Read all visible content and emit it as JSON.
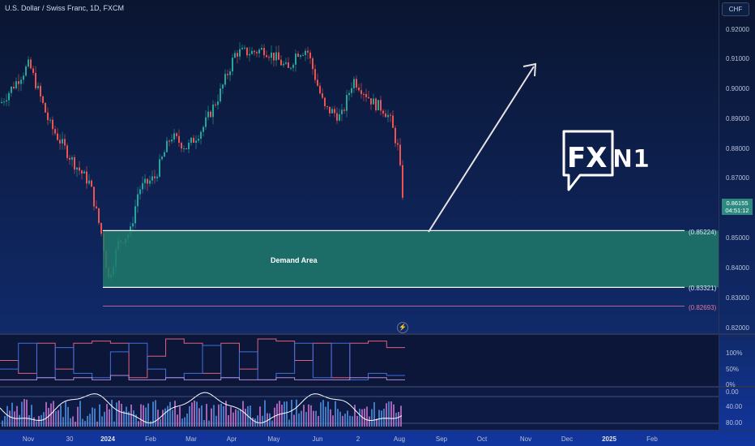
{
  "header": {
    "title": "U.S. Dollar / Swiss Franc, 1D, FXCM",
    "currency_button": "CHF"
  },
  "price_axis": {
    "labels": [
      "0.92000",
      "0.91000",
      "0.90000",
      "0.89000",
      "0.88000",
      "0.87000",
      "0.85000",
      "0.84000",
      "0.83000",
      "0.82000"
    ],
    "current_price": "0.86155",
    "countdown": "04:51:12"
  },
  "levels": [
    {
      "label": "(0.85224)",
      "value": 0.85224,
      "color": "#ffffff"
    },
    {
      "label": "(0.83321)",
      "value": 0.83321,
      "color": "#ffffff"
    },
    {
      "label": "(0.82693)",
      "value": 0.82693,
      "color": "#e07a9a"
    }
  ],
  "zone": {
    "label": "Demand Area",
    "top": 0.85224,
    "bottom": 0.83321,
    "color": "#1f7a6a"
  },
  "logo": {
    "text_fx": "FX",
    "text_n1": "N1"
  },
  "indicator1": {
    "labels": [
      "100%",
      "50%",
      "0%"
    ]
  },
  "indicator2": {
    "labels": [
      "0.00",
      "40.00",
      "80.00"
    ]
  },
  "time_axis": {
    "labels": [
      "Nov",
      "30",
      "2024",
      "Feb",
      "Mar",
      "Apr",
      "May",
      "Jun",
      "2",
      "Aug",
      "Sep",
      "Oct",
      "Nov",
      "Dec",
      "2025",
      "Feb"
    ]
  },
  "colors": {
    "up": "#26a69a",
    "down": "#ef5350",
    "background": "#0b1a3a"
  }
}
